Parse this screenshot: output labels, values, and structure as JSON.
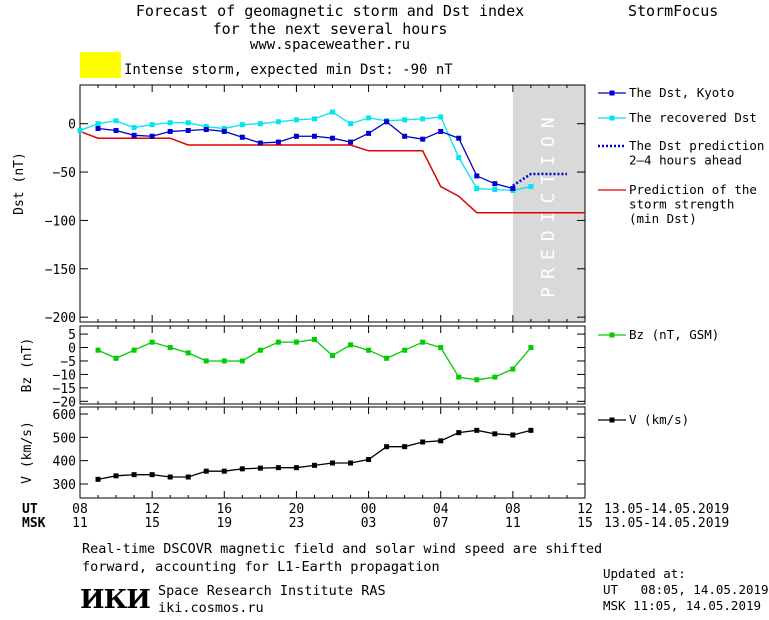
{
  "header": {
    "title_line1": "Forecast of geomagnetic storm and Dst index",
    "title_line2": "for the next several hours",
    "title_line3": "www.spaceweather.ru",
    "brand": "StormFocus"
  },
  "storm": {
    "color": "#ffff00",
    "text": "Intense storm, expected min Dst: -90 nT"
  },
  "colors": {
    "dst_kyoto": "#0000cc",
    "dst_recovered": "#00e5ee",
    "dst_prediction": "#0000cc",
    "storm_strength": "#e00000",
    "bz": "#00cc00",
    "v": "#000000",
    "prediction_band": "#d9d9d9"
  },
  "footer": {
    "note_line1": "Real-time DSCOVR magnetic field and solar wind speed are shifted",
    "note_line2": "forward, accounting for L1-Earth propagation",
    "logo": "ИКИ",
    "institute": "Space Research Institute RAS",
    "url": "iki.cosmos.ru",
    "updated_label": "Updated at:",
    "updated_ut": "UT   08:05, 14.05.2019",
    "updated_msk": "MSK 11:05, 14.05.2019"
  },
  "chart_data": [
    {
      "type": "line",
      "panel": "dst",
      "ylabel": "Dst (nT)",
      "ylim": [
        -205,
        40
      ],
      "yticks": [
        0,
        -50,
        -100,
        -150,
        -200
      ],
      "xlim": [
        8,
        36
      ],
      "band_label": "PREDICTION",
      "prediction_band_x": [
        32,
        36
      ],
      "series": [
        {
          "name": "The Dst, Kyoto",
          "x": [
            9,
            10,
            11,
            12,
            13,
            14,
            15,
            16,
            17,
            18,
            19,
            20,
            21,
            22,
            23,
            24,
            25,
            26,
            27,
            28,
            29,
            30,
            31,
            32
          ],
          "values": [
            -5,
            -7,
            -12,
            -13,
            -8,
            -7,
            -6,
            -8,
            -14,
            -20,
            -19,
            -13,
            -13,
            -15,
            -19,
            -10,
            2,
            -13,
            -16,
            -8,
            -15,
            -54,
            -62,
            -67
          ]
        },
        {
          "name": "The recovered Dst",
          "x": [
            8,
            9,
            10,
            11,
            12,
            13,
            14,
            15,
            16,
            17,
            18,
            19,
            20,
            21,
            22,
            23,
            24,
            25,
            26,
            27,
            28,
            29,
            30,
            31,
            32,
            33
          ],
          "values": [
            -7,
            0,
            3,
            -4,
            -1,
            1,
            1,
            -3,
            -5,
            -1,
            0,
            2,
            4,
            5,
            12,
            0,
            6,
            3,
            4,
            5,
            7,
            -35,
            -67,
            -68,
            -69,
            -65
          ]
        },
        {
          "name": "The Dst prediction\n2–4 hours ahead",
          "x": [
            32,
            33,
            34,
            35
          ],
          "values": [
            -64,
            -52,
            -52,
            -52
          ]
        },
        {
          "name": "Prediction of the\nstorm strength\n(min Dst)",
          "x": [
            8,
            9,
            10,
            11,
            12,
            13,
            14,
            15,
            16,
            17,
            18,
            19,
            20,
            21,
            22,
            23,
            24,
            25,
            26,
            27,
            28,
            29,
            30,
            31,
            32,
            33,
            34,
            35,
            36
          ],
          "values": [
            -8,
            -15,
            -15,
            -15,
            -15,
            -15,
            -22,
            -22,
            -22,
            -22,
            -22,
            -22,
            -22,
            -22,
            -22,
            -22,
            -28,
            -28,
            -28,
            -28,
            -65,
            -75,
            -92,
            -92,
            -92,
            -92,
            -92,
            -92,
            -92
          ]
        }
      ]
    },
    {
      "type": "line",
      "panel": "bz",
      "ylabel": "Bz (nT)",
      "ylim": [
        -21,
        8
      ],
      "yticks": [
        5,
        0,
        -5,
        -10,
        -15,
        -20
      ],
      "xlim": [
        8,
        36
      ],
      "series": [
        {
          "name": "Bz (nT, GSM)",
          "x": [
            9,
            10,
            11,
            12,
            13,
            14,
            15,
            16,
            17,
            18,
            19,
            20,
            21,
            22,
            23,
            24,
            25,
            26,
            27,
            28,
            29,
            30,
            31,
            32,
            33
          ],
          "values": [
            -1,
            -4,
            -1,
            2,
            0,
            -2,
            -5,
            -5,
            -5,
            -1,
            2,
            2,
            3,
            -3,
            1,
            -1,
            -4,
            -1,
            2,
            0,
            -11,
            -12,
            -11,
            -8,
            0
          ]
        }
      ]
    },
    {
      "type": "line",
      "panel": "v",
      "ylabel": "V (km/s)",
      "ylim": [
        240,
        630
      ],
      "yticks": [
        600,
        500,
        400,
        300
      ],
      "xlim": [
        8,
        36
      ],
      "series": [
        {
          "name": "V (km/s)",
          "x": [
            9,
            10,
            11,
            12,
            13,
            14,
            15,
            16,
            17,
            18,
            19,
            20,
            21,
            22,
            23,
            24,
            25,
            26,
            27,
            28,
            29,
            30,
            31,
            32,
            33
          ],
          "values": [
            320,
            335,
            340,
            340,
            330,
            330,
            355,
            355,
            365,
            368,
            370,
            370,
            380,
            390,
            390,
            405,
            460,
            460,
            480,
            485,
            520,
            530,
            515,
            510,
            530
          ]
        }
      ]
    }
  ],
  "time_axis": {
    "ut_label": "UT",
    "msk_label": "MSK",
    "ut_ticks": [
      "08",
      "12",
      "16",
      "20",
      "00",
      "04",
      "08",
      "12"
    ],
    "msk_ticks": [
      "11",
      "15",
      "19",
      "23",
      "03",
      "07",
      "11",
      "15"
    ],
    "range_ut": "13.05-14.05.2019",
    "range_msk": "13.05-14.05.2019"
  }
}
